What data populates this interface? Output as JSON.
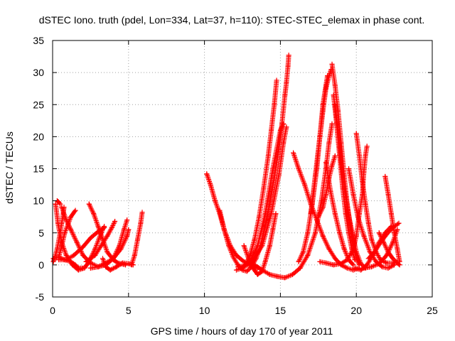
{
  "chart_data": {
    "type": "scatter",
    "title": "dSTEC Iono. truth (pdel, Lon=334, Lat=37, h=110): STEC-STEC_elemax in phase cont.",
    "xlabel": "GPS time / hours of day 170 of year 2011",
    "ylabel": "dSTEC  / TECUs",
    "xlim": [
      0,
      25
    ],
    "ylim": [
      -5,
      35
    ],
    "xticks": [
      0,
      5,
      10,
      15,
      20,
      25
    ],
    "yticks": [
      -5,
      0,
      5,
      10,
      15,
      20,
      25,
      30,
      35
    ],
    "grid": true,
    "marker": "+",
    "series_color": "#ff0000",
    "tracks": [
      {
        "points": [
          [
            0.05,
            0.5
          ],
          [
            0.15,
            1.2
          ],
          [
            0.3,
            2.5
          ],
          [
            0.5,
            5.0
          ],
          [
            0.6,
            6.5
          ],
          [
            0.7,
            8.0
          ],
          [
            0.75,
            9.0
          ]
        ]
      },
      {
        "points": [
          [
            0.2,
            9.5
          ],
          [
            0.35,
            6.5
          ],
          [
            0.6,
            3.5
          ],
          [
            0.9,
            1.5
          ],
          [
            1.3,
            0.0
          ],
          [
            1.7,
            -0.8
          ],
          [
            2.1,
            -0.5
          ],
          [
            2.4,
            0.5
          ],
          [
            2.8,
            2.5
          ],
          [
            3.2,
            5.0
          ],
          [
            3.4,
            6.0
          ]
        ]
      },
      {
        "points": [
          [
            0.05,
            1.0
          ],
          [
            0.4,
            1.2
          ],
          [
            0.8,
            0.8
          ],
          [
            1.2,
            0.5
          ],
          [
            1.5,
            0.0
          ],
          [
            1.7,
            -0.5
          ],
          [
            2.0,
            -0.5
          ]
        ]
      },
      {
        "points": [
          [
            0.3,
            10.0
          ],
          [
            0.4,
            9.8
          ],
          [
            0.5,
            9.5
          ]
        ]
      },
      {
        "points": [
          [
            0.4,
            1.2
          ],
          [
            0.6,
            3.0
          ],
          [
            0.8,
            5.0
          ],
          [
            1.2,
            7.5
          ],
          [
            1.5,
            8.5
          ]
        ]
      },
      {
        "points": [
          [
            0.6,
            9.0
          ],
          [
            0.9,
            7.0
          ],
          [
            1.2,
            5.5
          ],
          [
            1.6,
            3.5
          ],
          [
            2.0,
            1.5
          ],
          [
            2.5,
            0.3
          ],
          [
            3.0,
            -0.3
          ],
          [
            3.5,
            0.0
          ],
          [
            4.0,
            1.0
          ],
          [
            4.5,
            2.5
          ],
          [
            4.9,
            4.5
          ],
          [
            5.0,
            5.5
          ]
        ]
      },
      {
        "points": [
          [
            0.4,
            0.8
          ],
          [
            0.9,
            0.8
          ],
          [
            1.4,
            1.5
          ],
          [
            2.0,
            2.8
          ],
          [
            2.5,
            4.2
          ],
          [
            3.0,
            5.2
          ],
          [
            3.4,
            5.8
          ]
        ]
      },
      {
        "points": [
          [
            2.4,
            9.5
          ],
          [
            2.7,
            8.0
          ],
          [
            3.0,
            6.0
          ],
          [
            3.3,
            4.0
          ],
          [
            3.6,
            2.0
          ],
          [
            4.0,
            0.8
          ],
          [
            4.3,
            0.3
          ],
          [
            4.8,
            0.0
          ]
        ]
      },
      {
        "points": [
          [
            2.2,
            0.5
          ],
          [
            2.8,
            1.5
          ],
          [
            3.2,
            3.0
          ],
          [
            3.6,
            4.5
          ],
          [
            3.9,
            5.8
          ],
          [
            4.1,
            6.8
          ]
        ]
      },
      {
        "points": [
          [
            2.5,
            -0.5
          ],
          [
            3.0,
            -0.3
          ],
          [
            3.5,
            0.3
          ],
          [
            4.0,
            1.0
          ],
          [
            4.4,
            3.0
          ],
          [
            4.7,
            5.5
          ],
          [
            4.9,
            7.0
          ]
        ]
      },
      {
        "points": [
          [
            3.3,
            1.0
          ],
          [
            3.5,
            -0.3
          ],
          [
            3.8,
            -0.8
          ],
          [
            4.2,
            -0.3
          ],
          [
            4.6,
            0.3
          ],
          [
            5.0,
            0.2
          ],
          [
            5.3,
            0.0
          ]
        ]
      },
      {
        "points": [
          [
            5.2,
            0.0
          ],
          [
            5.4,
            1.5
          ],
          [
            5.6,
            4.0
          ],
          [
            5.8,
            6.5
          ],
          [
            5.9,
            8.2
          ]
        ]
      },
      {
        "points": [
          [
            10.15,
            14.2
          ],
          [
            10.4,
            12.5
          ],
          [
            10.7,
            10.0
          ],
          [
            11.0,
            8.0
          ],
          [
            11.3,
            5.5
          ],
          [
            11.6,
            3.0
          ],
          [
            11.9,
            1.2
          ],
          [
            12.2,
            0.0
          ],
          [
            12.5,
            -0.8
          ],
          [
            12.8,
            -1.0
          ],
          [
            13.1,
            -0.3
          ],
          [
            13.4,
            1.0
          ],
          [
            13.7,
            3.0
          ],
          [
            14.0,
            6.0
          ],
          [
            14.3,
            9.5
          ],
          [
            14.6,
            13.5
          ],
          [
            14.9,
            18.0
          ],
          [
            15.1,
            22.0
          ],
          [
            15.3,
            26.5
          ],
          [
            15.4,
            28.5
          ],
          [
            15.5,
            31.0
          ],
          [
            15.55,
            32.7
          ]
        ]
      },
      {
        "points": [
          [
            11.0,
            8.5
          ],
          [
            11.3,
            5.5
          ],
          [
            11.7,
            3.0
          ],
          [
            12.1,
            1.5
          ],
          [
            12.6,
            0.5
          ],
          [
            13.0,
            0.0
          ],
          [
            13.5,
            -0.5
          ]
        ]
      },
      {
        "points": [
          [
            12.6,
            3.0
          ],
          [
            12.9,
            1.0
          ],
          [
            13.2,
            -0.5
          ],
          [
            13.5,
            -1.5
          ],
          [
            13.8,
            -1.0
          ],
          [
            14.0,
            0.5
          ],
          [
            14.3,
            3.0
          ],
          [
            14.5,
            5.5
          ],
          [
            14.7,
            8.0
          ]
        ]
      },
      {
        "points": [
          [
            12.4,
            -0.5
          ],
          [
            12.7,
            0.0
          ],
          [
            13.0,
            1.5
          ],
          [
            13.3,
            4.0
          ],
          [
            13.6,
            7.5
          ],
          [
            13.9,
            12.0
          ],
          [
            14.2,
            17.0
          ],
          [
            14.4,
            21.0
          ],
          [
            14.6,
            25.0
          ],
          [
            14.75,
            28.8
          ]
        ]
      },
      {
        "points": [
          [
            12.1,
            -0.8
          ],
          [
            12.5,
            -0.5
          ],
          [
            13.0,
            0.5
          ],
          [
            13.5,
            3.0
          ],
          [
            14.0,
            8.0
          ],
          [
            14.5,
            15.0
          ],
          [
            15.0,
            21.0
          ],
          [
            15.2,
            22.0
          ]
        ]
      },
      {
        "points": [
          [
            12.2,
            -0.3
          ],
          [
            13.0,
            0.0
          ],
          [
            13.8,
            3.0
          ],
          [
            14.4,
            8.0
          ],
          [
            14.9,
            14.0
          ],
          [
            15.2,
            19.0
          ],
          [
            15.4,
            21.5
          ]
        ]
      },
      {
        "points": [
          [
            13.3,
            0.0
          ],
          [
            13.8,
            -0.8
          ],
          [
            14.3,
            -1.5
          ],
          [
            14.8,
            -1.8
          ],
          [
            15.3,
            -2.0
          ],
          [
            15.8,
            -1.5
          ],
          [
            16.3,
            -0.5
          ],
          [
            16.8,
            1.5
          ],
          [
            17.3,
            5.0
          ],
          [
            17.7,
            10.0
          ],
          [
            18.0,
            15.0
          ],
          [
            18.2,
            19.0
          ],
          [
            18.4,
            22.0
          ]
        ]
      },
      {
        "points": [
          [
            15.85,
            17.5
          ],
          [
            16.2,
            15.0
          ],
          [
            16.6,
            12.5
          ],
          [
            17.0,
            9.5
          ],
          [
            17.4,
            7.0
          ],
          [
            17.8,
            4.5
          ],
          [
            18.2,
            2.5
          ],
          [
            18.6,
            1.0
          ],
          [
            19.0,
            0.0
          ],
          [
            19.4,
            -0.5
          ],
          [
            19.8,
            -0.8
          ],
          [
            20.2,
            -0.5
          ]
        ]
      },
      {
        "points": [
          [
            16.2,
            0.5
          ],
          [
            16.5,
            2.0
          ],
          [
            16.8,
            5.0
          ],
          [
            17.1,
            9.5
          ],
          [
            17.4,
            15.0
          ],
          [
            17.6,
            20.0
          ],
          [
            17.8,
            24.0
          ],
          [
            18.0,
            27.5
          ],
          [
            18.2,
            29.5
          ],
          [
            18.35,
            30.5
          ]
        ]
      },
      {
        "points": [
          [
            17.0,
            8.0
          ],
          [
            17.3,
            14.0
          ],
          [
            17.6,
            20.0
          ],
          [
            17.8,
            25.0
          ],
          [
            18.0,
            28.0
          ],
          [
            18.1,
            29.5
          ]
        ]
      },
      {
        "points": [
          [
            18.4,
            31.3
          ],
          [
            18.6,
            28.0
          ],
          [
            18.8,
            24.0
          ],
          [
            19.0,
            19.0
          ],
          [
            19.2,
            14.0
          ],
          [
            19.4,
            9.5
          ],
          [
            19.6,
            6.0
          ],
          [
            19.8,
            3.0
          ],
          [
            20.0,
            1.0
          ],
          [
            20.2,
            0.0
          ]
        ]
      },
      {
        "points": [
          [
            18.5,
            26.5
          ],
          [
            18.7,
            22.0
          ],
          [
            18.9,
            17.0
          ],
          [
            19.1,
            12.0
          ],
          [
            19.3,
            8.0
          ],
          [
            19.5,
            5.0
          ],
          [
            19.7,
            2.5
          ],
          [
            19.9,
            0.8
          ]
        ]
      },
      {
        "points": [
          [
            18.6,
            25.0
          ],
          [
            18.9,
            18.5
          ],
          [
            19.2,
            12.0
          ],
          [
            19.6,
            6.5
          ],
          [
            20.0,
            2.0
          ],
          [
            20.3,
            0.2
          ],
          [
            20.6,
            -0.5
          ]
        ]
      },
      {
        "points": [
          [
            17.5,
            7.5
          ],
          [
            17.8,
            9.0
          ],
          [
            18.0,
            11.0
          ],
          [
            18.2,
            13.5
          ],
          [
            18.4,
            15.5
          ],
          [
            18.6,
            17.0
          ]
        ]
      },
      {
        "points": [
          [
            17.6,
            0.5
          ],
          [
            18.0,
            0.3
          ],
          [
            18.5,
            0.0
          ],
          [
            19.0,
            0.2
          ],
          [
            19.4,
            0.8
          ],
          [
            19.8,
            2.5
          ],
          [
            20.0,
            4.5
          ],
          [
            20.2,
            8.0
          ],
          [
            20.4,
            11.0
          ],
          [
            20.5,
            14.5
          ],
          [
            20.6,
            17.0
          ],
          [
            20.7,
            18.5
          ]
        ]
      },
      {
        "points": [
          [
            18.0,
            16.0
          ],
          [
            18.3,
            11.5
          ],
          [
            18.6,
            8.0
          ],
          [
            18.9,
            5.0
          ],
          [
            19.2,
            2.5
          ],
          [
            19.5,
            0.8
          ],
          [
            19.8,
            0.0
          ]
        ]
      },
      {
        "points": [
          [
            20.0,
            20.5
          ],
          [
            20.2,
            17.0
          ],
          [
            20.4,
            13.0
          ],
          [
            20.6,
            9.5
          ],
          [
            20.8,
            6.5
          ],
          [
            21.0,
            4.0
          ],
          [
            21.3,
            2.0
          ],
          [
            21.6,
            0.8
          ],
          [
            22.0,
            0.3
          ],
          [
            22.4,
            0.3
          ],
          [
            22.7,
            0.5
          ]
        ]
      },
      {
        "points": [
          [
            19.5,
            15.0
          ],
          [
            19.8,
            11.0
          ],
          [
            20.1,
            7.5
          ],
          [
            20.5,
            4.5
          ],
          [
            20.9,
            2.0
          ],
          [
            21.3,
            0.5
          ],
          [
            21.7,
            -0.3
          ],
          [
            22.1,
            -0.5
          ],
          [
            22.5,
            0.0
          ]
        ]
      },
      {
        "points": [
          [
            19.9,
            -0.5
          ],
          [
            20.3,
            -0.8
          ],
          [
            20.7,
            0.0
          ],
          [
            21.1,
            1.5
          ],
          [
            21.5,
            3.5
          ],
          [
            21.9,
            5.0
          ],
          [
            22.3,
            6.0
          ]
        ]
      },
      {
        "points": [
          [
            21.9,
            13.8
          ],
          [
            22.1,
            11.0
          ],
          [
            22.3,
            8.0
          ],
          [
            22.5,
            5.0
          ],
          [
            22.7,
            2.5
          ],
          [
            22.85,
            0.5
          ]
        ]
      },
      {
        "points": [
          [
            20.8,
            1.0
          ],
          [
            21.2,
            2.0
          ],
          [
            21.6,
            3.5
          ],
          [
            22.0,
            4.8
          ],
          [
            22.4,
            5.8
          ],
          [
            22.8,
            6.5
          ]
        ]
      },
      {
        "points": [
          [
            20.5,
            -0.5
          ],
          [
            21.0,
            -0.3
          ],
          [
            21.5,
            0.2
          ],
          [
            22.0,
            1.5
          ],
          [
            22.4,
            3.5
          ],
          [
            22.7,
            5.5
          ]
        ]
      },
      {
        "points": [
          [
            21.5,
            5.0
          ],
          [
            21.8,
            3.5
          ],
          [
            22.1,
            2.0
          ],
          [
            22.4,
            1.0
          ],
          [
            22.7,
            0.3
          ],
          [
            22.85,
            0.0
          ]
        ]
      }
    ]
  }
}
